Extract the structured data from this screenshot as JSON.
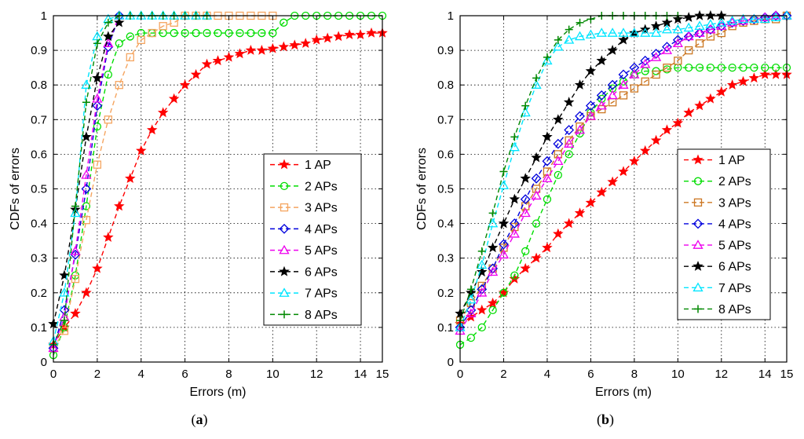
{
  "chart_data": [
    {
      "type": "line",
      "caption": "(a)",
      "xlabel": "Errors (m)",
      "ylabel": "CDFs of errors",
      "xlim": [
        0,
        15
      ],
      "ylim": [
        0,
        1
      ],
      "xticks": [
        0,
        2,
        4,
        6,
        8,
        10,
        12,
        14,
        15
      ],
      "yticks": [
        0,
        0.1,
        0.2,
        0.3,
        0.4,
        0.5,
        0.6,
        0.7,
        0.8,
        0.9,
        1
      ],
      "grid": true,
      "legend_position": "center-right",
      "series": [
        {
          "name": "1 AP",
          "color": "#ff0000",
          "marker": "star",
          "x": [
            0,
            0.5,
            1,
            1.5,
            2,
            2.5,
            3,
            3.5,
            4,
            4.5,
            5,
            5.5,
            6,
            6.5,
            7,
            7.5,
            8,
            8.5,
            9,
            9.5,
            10,
            10.5,
            11,
            11.5,
            12,
            12.5,
            13,
            13.5,
            14,
            14.5,
            15
          ],
          "y": [
            0.05,
            0.1,
            0.14,
            0.2,
            0.27,
            0.36,
            0.45,
            0.53,
            0.61,
            0.67,
            0.72,
            0.76,
            0.8,
            0.83,
            0.86,
            0.87,
            0.88,
            0.89,
            0.9,
            0.9,
            0.905,
            0.91,
            0.915,
            0.92,
            0.93,
            0.935,
            0.94,
            0.945,
            0.945,
            0.95,
            0.95
          ]
        },
        {
          "name": "2 APs",
          "color": "#00dd00",
          "marker": "circle",
          "x": [
            0,
            0.5,
            1,
            1.5,
            2,
            2.5,
            3,
            3.5,
            4,
            4.5,
            5,
            5.5,
            6,
            6.5,
            7,
            7.5,
            8,
            8.5,
            9,
            9.5,
            10,
            10.5,
            11,
            11.5,
            12,
            12.5,
            13,
            13.5,
            14,
            14.5,
            15
          ],
          "y": [
            0.02,
            0.1,
            0.25,
            0.45,
            0.68,
            0.83,
            0.92,
            0.94,
            0.95,
            0.95,
            0.95,
            0.95,
            0.95,
            0.95,
            0.95,
            0.95,
            0.95,
            0.95,
            0.95,
            0.95,
            0.95,
            0.98,
            1,
            1,
            1,
            1,
            1,
            1,
            1,
            1,
            1
          ]
        },
        {
          "name": "3 APs",
          "color": "#f5a560",
          "marker": "square",
          "x": [
            0,
            0.5,
            1,
            1.5,
            2,
            2.5,
            3,
            3.5,
            4,
            4.5,
            5,
            5.5,
            6,
            6.5,
            7,
            7.5,
            8,
            8.5,
            9,
            9.5,
            10
          ],
          "y": [
            0.04,
            0.09,
            0.24,
            0.41,
            0.57,
            0.7,
            0.8,
            0.88,
            0.93,
            0.95,
            0.97,
            0.98,
            1,
            1,
            1,
            1,
            1,
            1,
            1,
            1,
            1
          ]
        },
        {
          "name": "4 APs",
          "color": "#0000dd",
          "marker": "diamond",
          "x": [
            0,
            0.5,
            1,
            1.5,
            2,
            2.5,
            3
          ],
          "y": [
            0.04,
            0.15,
            0.31,
            0.5,
            0.74,
            0.91,
            1
          ]
        },
        {
          "name": "5 APs",
          "color": "#ee00ee",
          "marker": "triangle",
          "x": [
            0,
            0.5,
            1,
            1.5,
            2,
            2.5,
            3
          ],
          "y": [
            0.04,
            0.13,
            0.32,
            0.54,
            0.76,
            0.92,
            1
          ]
        },
        {
          "name": "6 APs",
          "color": "#000000",
          "marker": "star",
          "x": [
            0,
            0.5,
            1,
            1.5,
            2,
            2.5,
            3
          ],
          "y": [
            0.11,
            0.25,
            0.44,
            0.65,
            0.82,
            0.94,
            0.98
          ]
        },
        {
          "name": "7 APs",
          "color": "#00e5ff",
          "marker": "triangle",
          "x": [
            0,
            0.5,
            1,
            1.5,
            2,
            2.5,
            3,
            3.5,
            4,
            4.5,
            5,
            5.5,
            6,
            6.5,
            7
          ],
          "y": [
            0.06,
            0.2,
            0.43,
            0.8,
            0.94,
            0.99,
            1,
            1,
            1,
            1,
            1,
            1,
            1,
            1,
            1
          ]
        },
        {
          "name": "8 APs",
          "color": "#008800",
          "marker": "plus",
          "x": [
            0,
            0.5,
            1,
            1.5,
            2,
            2.5,
            3,
            3.5,
            4,
            4.5,
            5,
            5.5,
            6,
            6.5,
            7
          ],
          "y": [
            0.05,
            0.12,
            0.45,
            0.75,
            0.92,
            0.98,
            1,
            1,
            1,
            1,
            1,
            1,
            1,
            1,
            1
          ]
        }
      ]
    },
    {
      "type": "line",
      "caption": "(b)",
      "xlabel": "Errors (m)",
      "ylabel": "CDFs of errors",
      "xlim": [
        0,
        15
      ],
      "ylim": [
        0,
        1
      ],
      "xticks": [
        0,
        2,
        4,
        6,
        8,
        10,
        12,
        14,
        15
      ],
      "yticks": [
        0,
        0.1,
        0.2,
        0.3,
        0.4,
        0.5,
        0.6,
        0.7,
        0.8,
        0.9,
        1
      ],
      "grid": true,
      "legend_position": "center-right",
      "series": [
        {
          "name": "1 AP",
          "color": "#ff0000",
          "marker": "star",
          "x": [
            0,
            0.5,
            1,
            1.5,
            2,
            2.5,
            3,
            3.5,
            4,
            4.5,
            5,
            5.5,
            6,
            6.5,
            7,
            7.5,
            8,
            8.5,
            9,
            9.5,
            10,
            10.5,
            11,
            11.5,
            12,
            12.5,
            13,
            13.5,
            14,
            14.5,
            15
          ],
          "y": [
            0.11,
            0.13,
            0.15,
            0.17,
            0.2,
            0.24,
            0.27,
            0.3,
            0.33,
            0.37,
            0.4,
            0.43,
            0.46,
            0.49,
            0.52,
            0.55,
            0.58,
            0.61,
            0.64,
            0.67,
            0.69,
            0.72,
            0.74,
            0.76,
            0.78,
            0.8,
            0.81,
            0.82,
            0.83,
            0.83,
            0.83
          ]
        },
        {
          "name": "2 APs",
          "color": "#00dd00",
          "marker": "circle",
          "x": [
            0,
            0.5,
            1,
            1.5,
            2,
            2.5,
            3,
            3.5,
            4,
            4.5,
            5,
            5.5,
            6,
            6.5,
            7,
            7.5,
            8,
            8.5,
            9,
            9.5,
            10,
            10.5,
            11,
            11.5,
            12,
            12.5,
            13,
            13.5,
            14,
            14.5,
            15
          ],
          "y": [
            0.05,
            0.07,
            0.1,
            0.15,
            0.2,
            0.25,
            0.32,
            0.4,
            0.47,
            0.54,
            0.6,
            0.66,
            0.72,
            0.76,
            0.79,
            0.81,
            0.83,
            0.84,
            0.84,
            0.845,
            0.85,
            0.85,
            0.85,
            0.85,
            0.85,
            0.85,
            0.85,
            0.85,
            0.85,
            0.85,
            0.85
          ]
        },
        {
          "name": "3 APs",
          "color": "#cc7722",
          "marker": "square",
          "x": [
            0,
            0.5,
            1,
            1.5,
            2,
            2.5,
            3,
            3.5,
            4,
            4.5,
            5,
            5.5,
            6,
            6.5,
            7,
            7.5,
            8,
            8.5,
            9,
            9.5,
            10,
            10.5,
            11,
            11.5,
            12,
            12.5,
            13,
            13.5,
            14,
            14.5,
            15
          ],
          "y": [
            0.12,
            0.17,
            0.22,
            0.27,
            0.33,
            0.39,
            0.45,
            0.5,
            0.55,
            0.6,
            0.64,
            0.68,
            0.71,
            0.73,
            0.75,
            0.77,
            0.79,
            0.81,
            0.83,
            0.85,
            0.87,
            0.9,
            0.92,
            0.94,
            0.95,
            0.97,
            0.98,
            0.985,
            0.99,
            0.99,
            1
          ]
        },
        {
          "name": "4 APs",
          "color": "#0000dd",
          "marker": "diamond",
          "x": [
            0,
            0.5,
            1,
            1.5,
            2,
            2.5,
            3,
            3.5,
            4,
            4.5,
            5,
            5.5,
            6,
            6.5,
            7,
            7.5,
            8,
            8.5,
            9,
            9.5,
            10,
            10.5,
            11,
            11.5,
            12,
            12.5,
            13,
            13.5,
            14,
            14.5,
            15
          ],
          "y": [
            0.1,
            0.15,
            0.21,
            0.27,
            0.34,
            0.4,
            0.47,
            0.53,
            0.58,
            0.63,
            0.67,
            0.71,
            0.74,
            0.77,
            0.8,
            0.83,
            0.85,
            0.87,
            0.89,
            0.91,
            0.93,
            0.94,
            0.95,
            0.96,
            0.97,
            0.98,
            0.985,
            0.99,
            0.995,
            1,
            1
          ]
        },
        {
          "name": "5 APs",
          "color": "#ee00ee",
          "marker": "triangle",
          "x": [
            0,
            0.5,
            1,
            1.5,
            2,
            2.5,
            3,
            3.5,
            4,
            4.5,
            5,
            5.5,
            6,
            6.5,
            7,
            7.5,
            8,
            8.5,
            9,
            9.5,
            10,
            10.5,
            11,
            11.5,
            12,
            12.5,
            13,
            13.5,
            14,
            14.5,
            15
          ],
          "y": [
            0.09,
            0.14,
            0.2,
            0.26,
            0.31,
            0.37,
            0.43,
            0.48,
            0.53,
            0.58,
            0.63,
            0.67,
            0.71,
            0.74,
            0.77,
            0.8,
            0.83,
            0.86,
            0.88,
            0.9,
            0.92,
            0.94,
            0.95,
            0.96,
            0.97,
            0.98,
            0.985,
            0.99,
            0.995,
            1,
            1
          ]
        },
        {
          "name": "6 APs",
          "color": "#000000",
          "marker": "star",
          "x": [
            0,
            0.5,
            1,
            1.5,
            2,
            2.5,
            3,
            3.5,
            4,
            4.5,
            5,
            5.5,
            6,
            6.5,
            7,
            7.5,
            8,
            8.5,
            9,
            9.5,
            10,
            10.5,
            11,
            11.5,
            12
          ],
          "y": [
            0.14,
            0.2,
            0.26,
            0.33,
            0.4,
            0.47,
            0.53,
            0.59,
            0.65,
            0.7,
            0.75,
            0.8,
            0.84,
            0.87,
            0.9,
            0.93,
            0.95,
            0.96,
            0.97,
            0.98,
            0.99,
            0.995,
            1,
            1,
            1
          ]
        },
        {
          "name": "7 APs",
          "color": "#00e5ff",
          "marker": "triangle",
          "x": [
            0,
            0.5,
            1,
            1.5,
            2,
            2.5,
            3,
            3.5,
            4,
            4.5,
            5,
            5.5,
            6,
            6.5,
            7,
            7.5,
            8,
            8.5,
            9,
            9.5,
            10,
            10.5,
            11,
            11.5,
            12,
            12.5,
            13,
            13.5,
            14,
            14.5,
            15
          ],
          "y": [
            0.1,
            0.18,
            0.28,
            0.4,
            0.51,
            0.62,
            0.72,
            0.8,
            0.87,
            0.91,
            0.93,
            0.94,
            0.945,
            0.95,
            0.95,
            0.95,
            0.95,
            0.95,
            0.95,
            0.96,
            0.96,
            0.965,
            0.97,
            0.975,
            0.98,
            0.985,
            0.99,
            0.99,
            0.99,
            0.995,
            1
          ]
        },
        {
          "name": "8 APs",
          "color": "#008800",
          "marker": "plus",
          "x": [
            0,
            0.5,
            1,
            1.5,
            2,
            2.5,
            3,
            3.5,
            4,
            4.5,
            5,
            5.5,
            6,
            6.5,
            7,
            7.5,
            8,
            8.5,
            9,
            9.5,
            10
          ],
          "y": [
            0.12,
            0.21,
            0.32,
            0.43,
            0.55,
            0.65,
            0.74,
            0.82,
            0.88,
            0.93,
            0.96,
            0.98,
            0.99,
            1,
            1,
            1,
            1,
            1,
            1,
            1,
            1
          ]
        }
      ]
    }
  ]
}
